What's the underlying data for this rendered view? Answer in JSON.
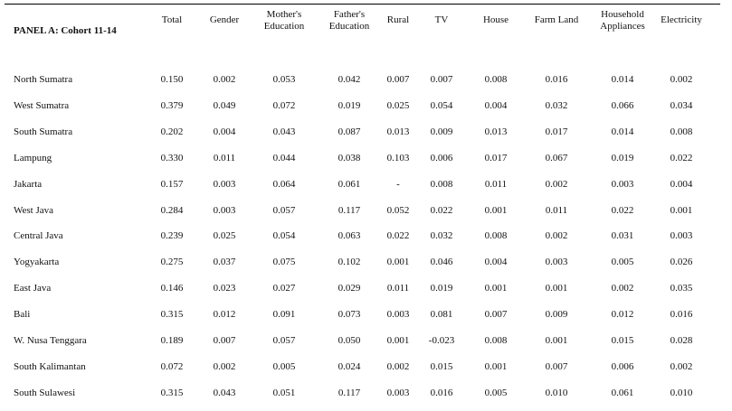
{
  "panel_title": "PANEL A: Cohort 11-14",
  "columns": [
    {
      "line1": "Total",
      "line2": ""
    },
    {
      "line1": "Gender",
      "line2": ""
    },
    {
      "line1": "Mother's",
      "line2": "Education"
    },
    {
      "line1": "Father's",
      "line2": "Education"
    },
    {
      "line1": "Rural",
      "line2": ""
    },
    {
      "line1": "TV",
      "line2": ""
    },
    {
      "line1": "House",
      "line2": ""
    },
    {
      "line1": "Farm Land",
      "line2": ""
    },
    {
      "line1": "Household",
      "line2": "Appliances"
    },
    {
      "line1": "Electricity",
      "line2": ""
    }
  ],
  "rows": [
    {
      "name": "North Sumatra",
      "values": [
        "0.150",
        "0.002",
        "0.053",
        "0.042",
        "0.007",
        "0.007",
        "0.008",
        "0.016",
        "0.014",
        "0.002"
      ]
    },
    {
      "name": "West Sumatra",
      "values": [
        "0.379",
        "0.049",
        "0.072",
        "0.019",
        "0.025",
        "0.054",
        "0.004",
        "0.032",
        "0.066",
        "0.034"
      ]
    },
    {
      "name": "South Sumatra",
      "values": [
        "0.202",
        "0.004",
        "0.043",
        "0.087",
        "0.013",
        "0.009",
        "0.013",
        "0.017",
        "0.014",
        "0.008"
      ]
    },
    {
      "name": "Lampung",
      "values": [
        "0.330",
        "0.011",
        "0.044",
        "0.038",
        "0.103",
        "0.006",
        "0.017",
        "0.067",
        "0.019",
        "0.022"
      ]
    },
    {
      "name": "Jakarta",
      "values": [
        "0.157",
        "0.003",
        "0.064",
        "0.061",
        "-",
        "0.008",
        "0.011",
        "0.002",
        "0.003",
        "0.004"
      ]
    },
    {
      "name": "West Java",
      "values": [
        "0.284",
        "0.003",
        "0.057",
        "0.117",
        "0.052",
        "0.022",
        "0.001",
        "0.011",
        "0.022",
        "0.001"
      ]
    },
    {
      "name": "Central Java",
      "values": [
        "0.239",
        "0.025",
        "0.054",
        "0.063",
        "0.022",
        "0.032",
        "0.008",
        "0.002",
        "0.031",
        "0.003"
      ]
    },
    {
      "name": "Yogyakarta",
      "values": [
        "0.275",
        "0.037",
        "0.075",
        "0.102",
        "0.001",
        "0.046",
        "0.004",
        "0.003",
        "0.005",
        "0.026"
      ]
    },
    {
      "name": "East Java",
      "values": [
        "0.146",
        "0.023",
        "0.027",
        "0.029",
        "0.011",
        "0.019",
        "0.001",
        "0.001",
        "0.002",
        "0.035"
      ]
    },
    {
      "name": "Bali",
      "values": [
        "0.315",
        "0.012",
        "0.091",
        "0.073",
        "0.003",
        "0.081",
        "0.007",
        "0.009",
        "0.012",
        "0.016"
      ]
    },
    {
      "name": "W. Nusa Tenggara",
      "values": [
        "0.189",
        "0.007",
        "0.057",
        "0.050",
        "0.001",
        "-0.023",
        "0.008",
        "0.001",
        "0.015",
        "0.028"
      ]
    },
    {
      "name": "South Kalimantan",
      "values": [
        "0.072",
        "0.002",
        "0.005",
        "0.024",
        "0.002",
        "0.015",
        "0.001",
        "0.007",
        "0.006",
        "0.002"
      ]
    },
    {
      "name": "South Sulawesi",
      "values": [
        "0.315",
        "0.043",
        "0.051",
        "0.117",
        "0.003",
        "0.016",
        "0.005",
        "0.010",
        "0.061",
        "0.010"
      ]
    }
  ]
}
